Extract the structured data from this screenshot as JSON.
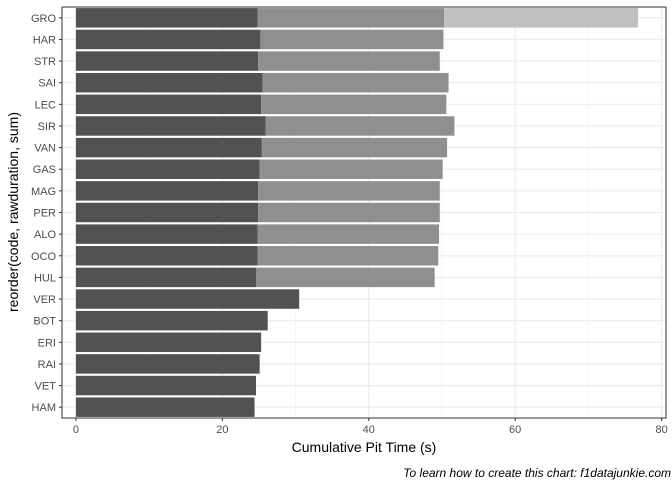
{
  "chart_data": {
    "type": "bar",
    "orientation": "horizontal",
    "stacked": true,
    "xlabel": "Cumulative Pit Time (s)",
    "ylabel": "reorder(code, rawduration, sum)",
    "caption": "To learn how to create this chart: f1datajunkie.com",
    "xlim": [
      -1.9,
      80.6
    ],
    "xticks": [
      0,
      20,
      40,
      60,
      80
    ],
    "grid": true,
    "legend": "none",
    "categories": [
      "GRO",
      "HAR",
      "STR",
      "SAI",
      "LEC",
      "SIR",
      "VAN",
      "GAS",
      "MAG",
      "PER",
      "ALO",
      "OCO",
      "HUL",
      "VER",
      "BOT",
      "ERI",
      "RAI",
      "VET",
      "HAM"
    ],
    "series": [
      {
        "color": "#525252",
        "values": [
          24.8,
          25.2,
          24.9,
          25.5,
          25.3,
          25.9,
          25.4,
          25.1,
          24.9,
          24.9,
          24.8,
          24.8,
          24.6,
          30.5,
          26.2,
          25.3,
          25.1,
          24.6,
          24.4
        ]
      },
      {
        "color": "#8f8f8f",
        "values": [
          25.5,
          25.0,
          24.8,
          25.4,
          25.3,
          25.8,
          25.3,
          25.0,
          24.8,
          24.8,
          24.8,
          24.7,
          24.4,
          null,
          null,
          null,
          null,
          null,
          null
        ]
      },
      {
        "color": "#c0c0c0",
        "values": [
          26.5,
          null,
          null,
          null,
          null,
          null,
          null,
          null,
          null,
          null,
          null,
          null,
          null,
          null,
          null,
          null,
          null,
          null,
          null
        ]
      }
    ]
  }
}
